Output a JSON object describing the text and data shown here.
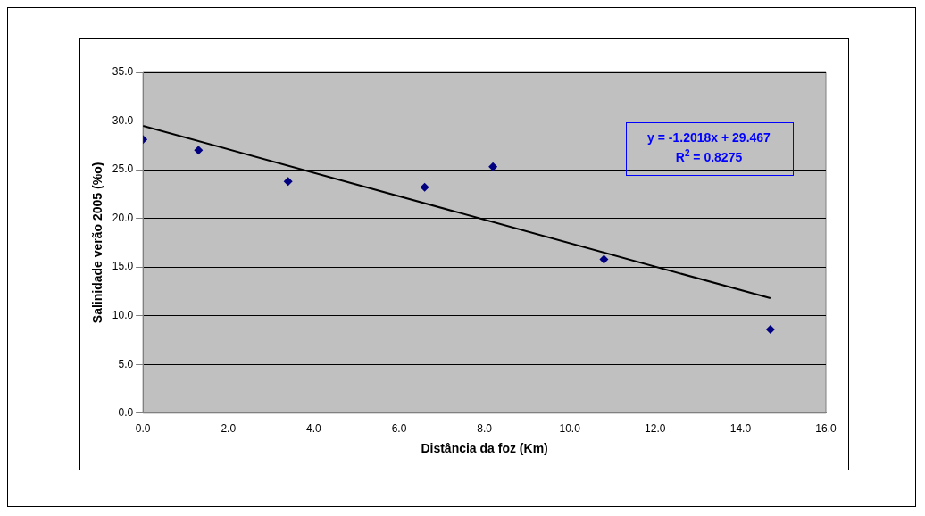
{
  "chart_data": {
    "type": "scatter",
    "xlabel": "Distância da foz (Km)",
    "ylabel": "Salinidade verão 2005 (%o)",
    "series": [
      {
        "type": "scatter",
        "color": "#000080",
        "x": [
          0,
          1.3,
          3.4,
          6.6,
          8.2,
          10.8,
          14.7
        ],
        "values": [
          28.1,
          27.0,
          23.8,
          23.2,
          25.3,
          15.8,
          8.6
        ],
        "marker": "diamond"
      },
      {
        "type": "line",
        "color": "#000000",
        "x": [
          0,
          14.7
        ],
        "values": [
          29.5,
          11.8
        ],
        "marker": "none",
        "line_style": "solid"
      }
    ],
    "xlim": [
      0,
      16
    ],
    "xticks": [
      {
        "value": 0,
        "label": "0.0"
      },
      {
        "value": 2,
        "label": "2.0"
      },
      {
        "value": 4,
        "label": "4.0"
      },
      {
        "value": 6,
        "label": "6.0"
      },
      {
        "value": 8,
        "label": "8.0"
      },
      {
        "value": 10,
        "label": "10.0"
      },
      {
        "value": 12,
        "label": "12.0"
      },
      {
        "value": 14,
        "label": "14.0"
      },
      {
        "value": 16,
        "label": "16.0"
      }
    ],
    "ylim": [
      0,
      35
    ],
    "yticks": [
      {
        "value": 0,
        "label": "0.0"
      },
      {
        "value": 5,
        "label": "5.0"
      },
      {
        "value": 10,
        "label": "10.0"
      },
      {
        "value": 15,
        "label": "15.0"
      },
      {
        "value": 20,
        "label": "20.0"
      },
      {
        "value": 25,
        "label": "25.0"
      },
      {
        "value": 30,
        "label": "30.0"
      },
      {
        "value": 35,
        "label": "35.0"
      }
    ],
    "grid": "y",
    "legend": false,
    "annotations": [
      "y = -1.2018x + 29.467",
      "R$^{2}$ = 0.8275"
    ]
  }
}
